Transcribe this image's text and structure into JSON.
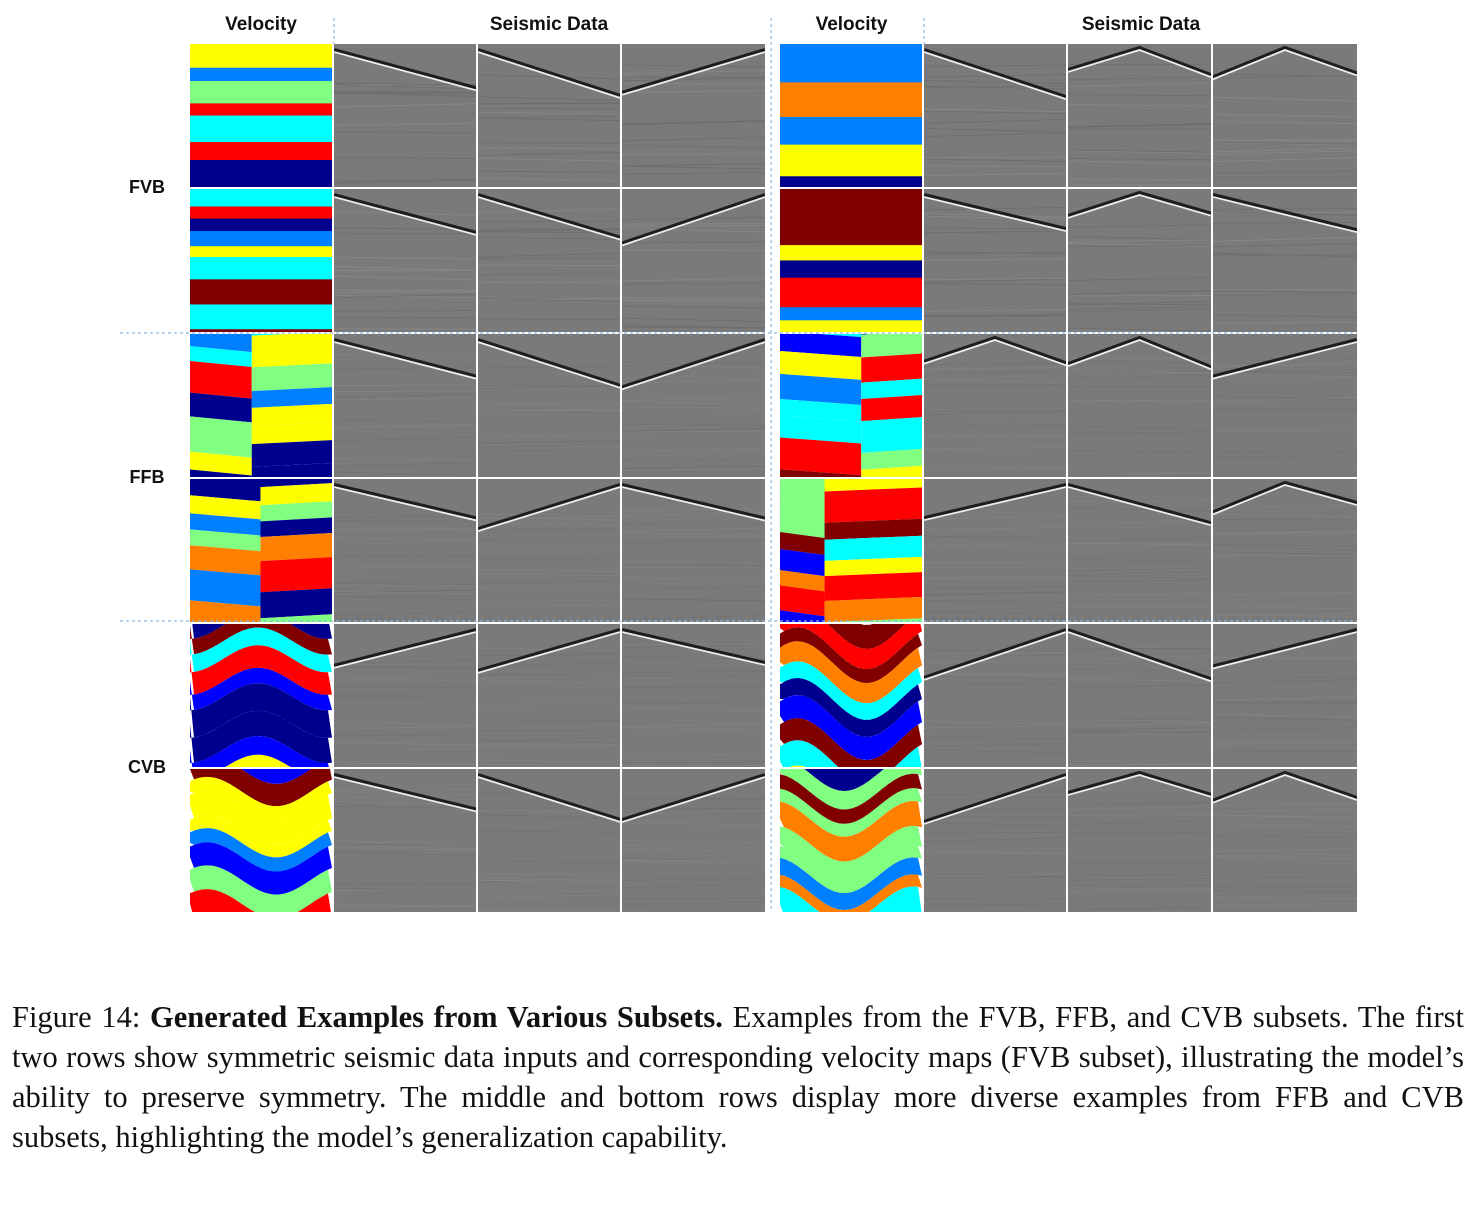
{
  "figure": {
    "column_headers": {
      "left_velocity": "Velocity",
      "left_seismic": "Seismic Data",
      "right_velocity": "Velocity",
      "right_seismic": "Seismic Data"
    },
    "row_groups": [
      {
        "label": "FVB",
        "style": "flat"
      },
      {
        "label": "FFB",
        "style": "fault"
      },
      {
        "label": "CVB",
        "style": "curved"
      }
    ],
    "colors": {
      "jet": [
        "#00008f",
        "#0000ff",
        "#0080ff",
        "#00ffff",
        "#80ff80",
        "#ffff00",
        "#ff8000",
        "#ff0000",
        "#800000"
      ],
      "seismic_background": "#7a7a7a",
      "separator_dash": "#8ab8e0",
      "tile_gap": "#ffffff"
    }
  },
  "caption": {
    "label": "Figure 14:",
    "title": "Generated Examples from Various Subsets.",
    "body": "Examples from the FVB, FFB, and CVB subsets. The first two rows show symmetric seismic data inputs and corresponding velocity maps (FVB subset), illustrating the model’s ability to preserve symmetry. The middle and bottom rows display more diverse examples from FFB and CVB subsets, highlighting the model’s generalization capability."
  }
}
